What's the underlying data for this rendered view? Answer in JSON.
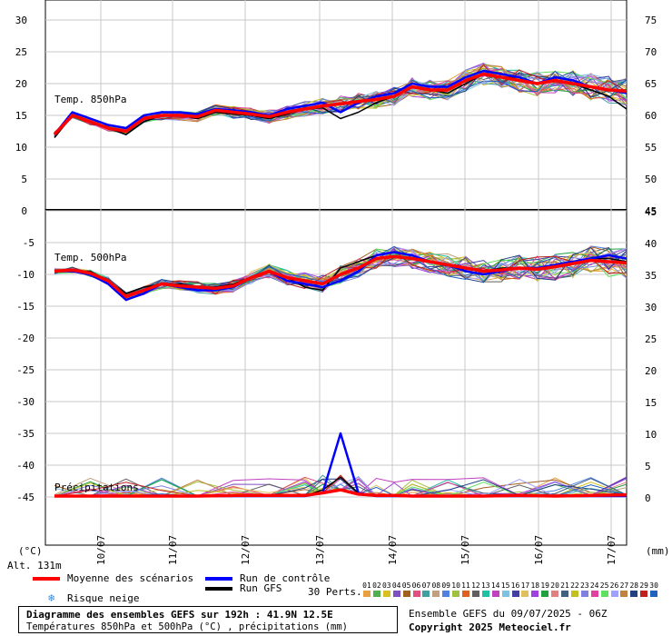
{
  "colors": {
    "mean": "#ff0000",
    "control": "#0000ff",
    "gfs": "#000000",
    "grid": "#c8c8c8",
    "snow": "#3a8ad8"
  },
  "legend": {
    "mean_label": "Moyenne des scénarios",
    "control_label": "Run de contrôle",
    "gfs_label": "Run GFS",
    "snow_label": "Risque neige",
    "snow_icon": "snowflake-icon",
    "perts_label": "30 Perts.",
    "pert_ids": [
      "01",
      "02",
      "03",
      "04",
      "05",
      "06",
      "07",
      "08",
      "09",
      "10",
      "11",
      "12",
      "13",
      "14",
      "15",
      "16",
      "17",
      "18",
      "19",
      "20",
      "21",
      "22",
      "23",
      "24",
      "25",
      "26",
      "27",
      "28",
      "29",
      "30"
    ],
    "pert_colors": [
      "#e8a040",
      "#50b050",
      "#d8c020",
      "#8050c0",
      "#a06020",
      "#e05080",
      "#40a0a0",
      "#c0a080",
      "#5080e0",
      "#a0c040",
      "#e06020",
      "#606060",
      "#20c0a0",
      "#c040c0",
      "#80c0e0",
      "#4040a0",
      "#e0c060",
      "#a040e0",
      "#20a040",
      "#e08080",
      "#406080",
      "#c0c020",
      "#8080e0",
      "#e040a0",
      "#60e060",
      "#a0a0ff",
      "#c08040",
      "#204080",
      "#c02020",
      "#2060c0"
    ]
  },
  "info": {
    "title": "Diagramme des ensembles GEFS sur 192h : 41.9N 12.5E",
    "subtitle": "Températures 850hPa et 500hPa (°C) , précipitations (mm)",
    "run": "Ensemble GEFS du 09/07/2025 - 06Z",
    "copyright": "Copyright 2025 Meteociel.fr"
  },
  "axis_labels": {
    "left_unit": "(°C)",
    "right_unit": "(mm)",
    "altitude": "Alt. 131m"
  },
  "chart_data": [
    {
      "type": "line",
      "title": "Temp. 850hPa",
      "x_labels": [
        "10/07",
        "11/07",
        "12/07",
        "13/07",
        "14/07",
        "15/07",
        "16/07",
        "17/07"
      ],
      "y_left_ticks": [
        "30",
        "25",
        "20",
        "15",
        "10",
        "5",
        "0"
      ],
      "y_right_ticks": [
        "75",
        "70",
        "65",
        "60",
        "55",
        "50",
        "45"
      ],
      "ylim": [
        0,
        32
      ],
      "grid": true,
      "x_hours": [
        0,
        6,
        12,
        18,
        24,
        30,
        36,
        42,
        48,
        54,
        60,
        66,
        72,
        78,
        84,
        90,
        96,
        102,
        108,
        114,
        120,
        126,
        132,
        138,
        144,
        150,
        156,
        162,
        168,
        174,
        180,
        186,
        192
      ],
      "series": [
        {
          "name": "Moyenne des scénarios",
          "values": [
            12,
            15,
            14,
            13,
            12.5,
            14.5,
            15,
            15,
            14.8,
            15.8,
            15.5,
            15.2,
            14.8,
            15.5,
            16,
            16.5,
            16.8,
            17.2,
            17.5,
            18,
            19.5,
            19,
            19,
            20.5,
            21.5,
            21,
            20.5,
            20,
            20.5,
            20,
            19.5,
            19,
            18.8
          ]
        },
        {
          "name": "Run de contrôle",
          "values": [
            12,
            15.5,
            14.5,
            13.5,
            13,
            15,
            15.5,
            15.5,
            15.2,
            16,
            15.8,
            15.5,
            15,
            16,
            16.5,
            17,
            15.5,
            17,
            18,
            18.5,
            20,
            19.5,
            19.5,
            21,
            22,
            21.5,
            21,
            20,
            21,
            20.5,
            19.5,
            19,
            18.5
          ]
        },
        {
          "name": "Run GFS",
          "values": [
            11.5,
            15,
            14,
            13,
            12,
            14,
            15,
            15,
            14.5,
            15.5,
            15.2,
            15,
            14.5,
            15.2,
            16,
            16.2,
            14.5,
            15.5,
            17,
            18,
            19.5,
            19,
            18.5,
            20,
            21.5,
            21,
            21,
            20,
            20.5,
            20,
            19,
            18,
            16
          ]
        }
      ]
    },
    {
      "type": "line",
      "title": "Temp. 500hPa",
      "x_labels": [
        "10/07",
        "11/07",
        "12/07",
        "13/07",
        "14/07",
        "15/07",
        "16/07",
        "17/07"
      ],
      "y_left_ticks": [
        "-5",
        "-10",
        "-15",
        "-20",
        "-25",
        "-30",
        "-35",
        "-40",
        "-45"
      ],
      "y_right_ticks": [
        "45",
        "40",
        "35",
        "30",
        "25",
        "20",
        "15",
        "10",
        "5",
        "0"
      ],
      "ylim": [
        -50,
        -2
      ],
      "grid": true,
      "x_hours": [
        0,
        6,
        12,
        18,
        24,
        30,
        36,
        42,
        48,
        54,
        60,
        66,
        72,
        78,
        84,
        90,
        96,
        102,
        108,
        114,
        120,
        126,
        132,
        138,
        144,
        150,
        156,
        162,
        168,
        174,
        180,
        186,
        192
      ],
      "series": [
        {
          "name": "Moyenne des scénarios",
          "values": [
            -9.5,
            -9.3,
            -9.8,
            -11,
            -13.5,
            -12.5,
            -11.5,
            -11.8,
            -12,
            -12.2,
            -11.8,
            -10.5,
            -9.5,
            -10.5,
            -11,
            -11.5,
            -10,
            -9,
            -7.5,
            -7.2,
            -7.5,
            -8,
            -8.5,
            -9,
            -9.5,
            -9.3,
            -9,
            -9.2,
            -8.8,
            -8.3,
            -7.8,
            -8,
            -8.2
          ]
        },
        {
          "name": "Run de contrôle",
          "values": [
            -9.5,
            -9.5,
            -10,
            -11.5,
            -14,
            -13,
            -11.5,
            -12,
            -12.5,
            -12.5,
            -12,
            -10.5,
            -9.5,
            -11,
            -11.5,
            -12,
            -11,
            -9.5,
            -7,
            -6.5,
            -7,
            -8,
            -8.5,
            -9.5,
            -10,
            -9.5,
            -9,
            -9,
            -8.5,
            -8,
            -7.5,
            -7,
            -7.5
          ]
        },
        {
          "name": "Run GFS",
          "values": [
            -9.5,
            -9.5,
            -9.5,
            -11,
            -13,
            -12,
            -11.5,
            -11.5,
            -12,
            -12,
            -11.5,
            -10.5,
            -9.5,
            -10.5,
            -12,
            -12.5,
            -9,
            -8,
            -7,
            -6.5,
            -7,
            -8,
            -8.5,
            -9,
            -9.5,
            -9,
            -9,
            -9,
            -8.5,
            -8,
            -7.5,
            -7.5,
            -8
          ]
        }
      ]
    },
    {
      "type": "line",
      "title": "Précipitations",
      "unit": "mm",
      "x_hours": [
        0,
        12,
        24,
        36,
        48,
        60,
        72,
        84,
        90,
        96,
        102,
        108,
        114,
        120,
        132,
        144,
        156,
        168,
        180,
        192
      ],
      "series": [
        {
          "name": "Moyenne des scénarios",
          "values": [
            0,
            0,
            0,
            0,
            0,
            0.1,
            0.1,
            0.1,
            0.5,
            1,
            0.3,
            0.1,
            0.1,
            0,
            0,
            0,
            0.1,
            0,
            0.1,
            0.2
          ]
        },
        {
          "name": "Run de contrôle",
          "values": [
            0,
            0,
            0,
            0,
            0,
            0,
            0,
            0,
            0.5,
            10,
            0.5,
            0,
            0,
            0,
            0,
            0,
            0,
            0,
            0,
            0
          ]
        },
        {
          "name": "Run GFS",
          "values": [
            0,
            0,
            0,
            0,
            0,
            0,
            0,
            0,
            1,
            3,
            0.5,
            0,
            0,
            0,
            0,
            0,
            0,
            0,
            0,
            0
          ]
        }
      ],
      "peak_value": 10
    }
  ]
}
